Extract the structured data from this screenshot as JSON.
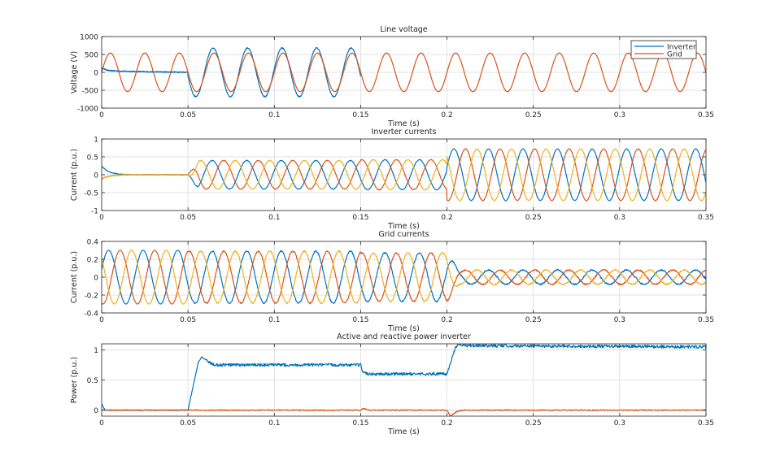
{
  "colors": {
    "blue": "#0072BD",
    "orange": "#D95319",
    "yellow": "#EDB120",
    "grid": "#d9d9d9",
    "axis": "#262626"
  },
  "chart_data": [
    {
      "type": "line",
      "title": "Line voltage",
      "xlabel": "Time (s)",
      "ylabel": "Voltage (V)",
      "xlim": [
        0,
        0.35
      ],
      "ylim": [
        -1000,
        1000
      ],
      "xticks": [
        0,
        0.05,
        0.1,
        0.15,
        0.2,
        0.25,
        0.3,
        0.35
      ],
      "xtick_labels": [
        "0",
        "0.05",
        "0.1",
        "0.15",
        "0.2",
        "0.25",
        "0.3",
        "0.35"
      ],
      "yticks": [
        -1000,
        -500,
        0,
        500,
        1000
      ],
      "ytick_labels": [
        "-1000",
        "-500",
        "0",
        "500",
        "1000"
      ],
      "grid": true,
      "legend": {
        "position": "top-right",
        "entries": [
          "Inverter",
          "Grid"
        ]
      },
      "series": [
        {
          "name": "Inverter",
          "color": "#0072BD",
          "frequency_hz": 50,
          "segments": [
            {
              "t": [
                0,
                0.05
              ],
              "kind": "noise",
              "level": 15,
              "start_spike": 60
            },
            {
              "t": [
                0.05,
                0.15
              ],
              "kind": "sine",
              "amplitude": 680
            },
            {
              "t": [
                0.15,
                0.35
              ],
              "kind": "hidden_behind_grid"
            }
          ]
        },
        {
          "name": "Grid",
          "color": "#D95319",
          "frequency_hz": 50,
          "segments": [
            {
              "t": [
                0,
                0.35
              ],
              "kind": "sine",
              "amplitude": 540
            }
          ]
        }
      ]
    },
    {
      "type": "line",
      "title": "Inverter currents",
      "xlabel": "Time (s)",
      "ylabel": "Current (p.u.)",
      "xlim": [
        0,
        0.35
      ],
      "ylim": [
        -1,
        1
      ],
      "xticks": [
        0,
        0.05,
        0.1,
        0.15,
        0.2,
        0.25,
        0.3,
        0.35
      ],
      "xtick_labels": [
        "0",
        "0.05",
        "0.1",
        "0.15",
        "0.2",
        "0.25",
        "0.3",
        "0.35"
      ],
      "yticks": [
        -1,
        -0.5,
        0,
        0.5,
        1
      ],
      "ytick_labels": [
        "-1",
        "-0.5",
        "0",
        "0.5",
        "1"
      ],
      "grid": true,
      "phases": 3,
      "frequency_hz": 50,
      "phase_colors": [
        "#0072BD",
        "#D95319",
        "#EDB120"
      ],
      "amplitude_profile": [
        {
          "t": [
            0,
            0.05
          ],
          "amplitude": 0.0
        },
        {
          "t": [
            0.05,
            0.15
          ],
          "amplitude": 0.4
        },
        {
          "t": [
            0.15,
            0.2
          ],
          "amplitude": 0.42
        },
        {
          "t": [
            0.2,
            0.35
          ],
          "amplitude": 0.72
        }
      ]
    },
    {
      "type": "line",
      "title": "Grid currents",
      "xlabel": "Time (s)",
      "ylabel": "Current (p.u.)",
      "xlim": [
        0,
        0.35
      ],
      "ylim": [
        -0.4,
        0.4
      ],
      "xticks": [
        0,
        0.05,
        0.1,
        0.15,
        0.2,
        0.25,
        0.3,
        0.35
      ],
      "xtick_labels": [
        "0",
        "0.05",
        "0.1",
        "0.15",
        "0.2",
        "0.25",
        "0.3",
        "0.35"
      ],
      "yticks": [
        -0.4,
        -0.2,
        0,
        0.2,
        0.4
      ],
      "ytick_labels": [
        "-0.4",
        "-0.2",
        "0",
        "0.2",
        "0.4"
      ],
      "grid": true,
      "phases": 3,
      "frequency_hz": 50,
      "phase_colors": [
        "#0072BD",
        "#D95319",
        "#EDB120"
      ],
      "amplitude_profile": [
        {
          "t": [
            0,
            0.05
          ],
          "amplitude": 0.3
        },
        {
          "t": [
            0.05,
            0.15
          ],
          "amplitude": 0.29
        },
        {
          "t": [
            0.15,
            0.2
          ],
          "amplitude": 0.27
        },
        {
          "t": [
            0.2,
            0.35
          ],
          "amplitude": 0.08
        }
      ]
    },
    {
      "type": "line",
      "title": "Active and reactive power inverter",
      "xlabel": "Time (s)",
      "ylabel": "Power (p.u.)",
      "xlim": [
        0,
        0.35
      ],
      "ylim": [
        -0.1,
        1.1
      ],
      "xticks": [
        0,
        0.05,
        0.1,
        0.15,
        0.2,
        0.25,
        0.3,
        0.35
      ],
      "xtick_labels": [
        "0",
        "0.05",
        "0.1",
        "0.15",
        "0.2",
        "0.25",
        "0.3",
        "0.35"
      ],
      "yticks": [
        0,
        0.5,
        1
      ],
      "ytick_labels": [
        "0",
        "0.5",
        "1"
      ],
      "grid": true,
      "series": [
        {
          "color": "#0072BD",
          "points": [
            [
              0,
              0.1
            ],
            [
              0.002,
              0.0
            ],
            [
              0.05,
              0.0
            ],
            [
              0.056,
              0.8
            ],
            [
              0.058,
              0.88
            ],
            [
              0.062,
              0.8
            ],
            [
              0.065,
              0.75
            ],
            [
              0.15,
              0.75
            ],
            [
              0.151,
              0.62
            ],
            [
              0.155,
              0.6
            ],
            [
              0.2,
              0.6
            ],
            [
              0.205,
              1.05
            ],
            [
              0.207,
              1.1
            ],
            [
              0.21,
              1.07
            ],
            [
              0.35,
              1.05
            ]
          ]
        },
        {
          "color": "#D95319",
          "points": [
            [
              0,
              0.0
            ],
            [
              0.15,
              0.0
            ],
            [
              0.151,
              0.03
            ],
            [
              0.155,
              0.0
            ],
            [
              0.2,
              0.0
            ],
            [
              0.202,
              -0.1
            ],
            [
              0.206,
              -0.02
            ],
            [
              0.21,
              0.0
            ],
            [
              0.35,
              0.0
            ]
          ]
        }
      ]
    }
  ]
}
